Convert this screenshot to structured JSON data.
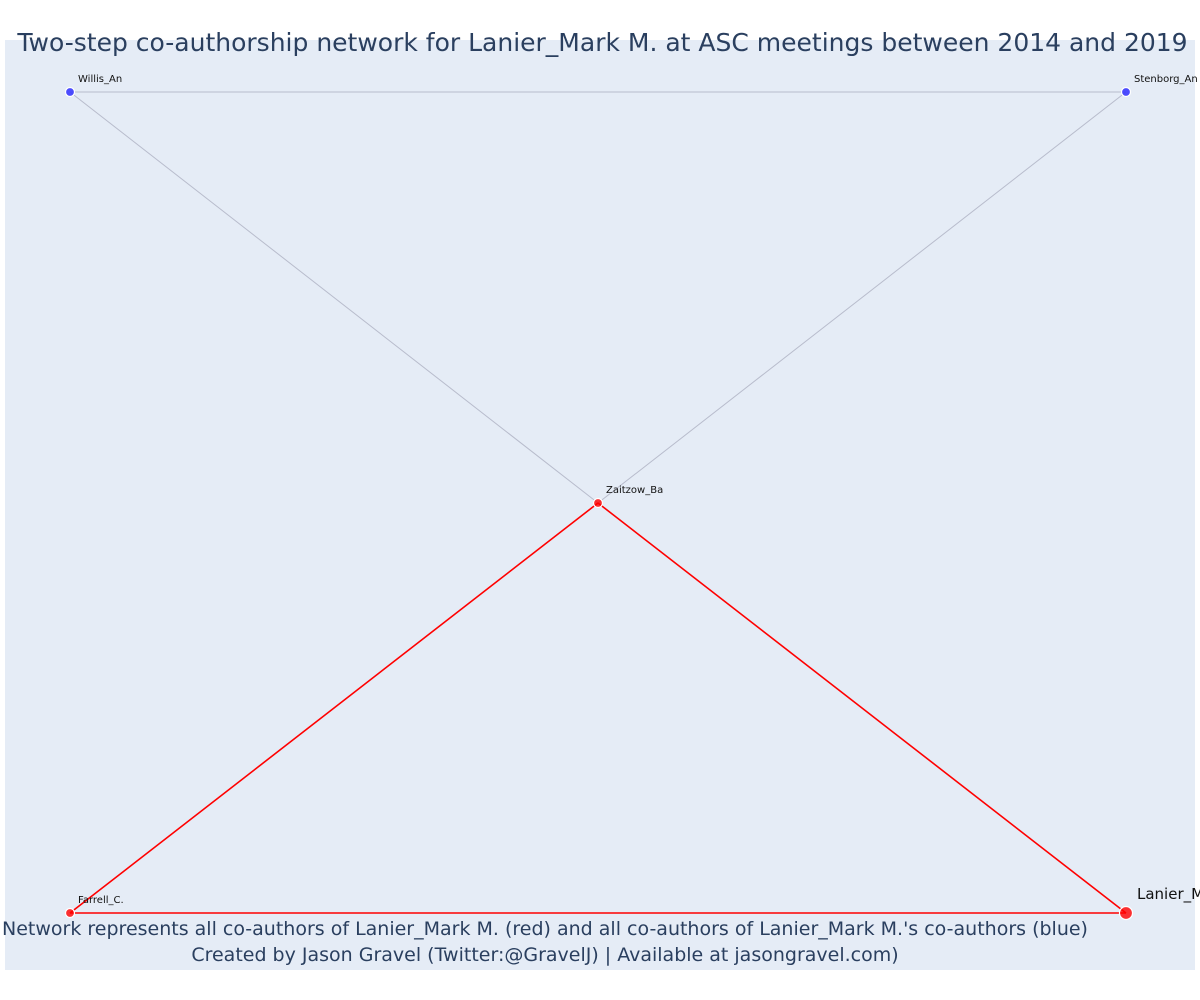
{
  "title": "Two-step co-authorship network for Lanier_Mark M. at ASC meetings between 2014 and 2019",
  "footer": {
    "line1": "Network represents all co-authors of Lanier_Mark M. (red) and all co-authors of Lanier_Mark M.'s co-authors (blue)",
    "line2": "Created by Jason Gravel (Twitter:@GravelJ) | Available at jasongravel.com)"
  },
  "colors": {
    "background": "#e5ecf6",
    "red": "#ff0000",
    "blue": "#3b3bff",
    "gray_edge": "#b8bccc",
    "text": "#2a3f5f"
  },
  "network": {
    "nodes": [
      {
        "id": "willis",
        "label": "Willis_An",
        "group": "blue"
      },
      {
        "id": "stenborg",
        "label": "Stenborg_An",
        "group": "blue"
      },
      {
        "id": "zaitzow",
        "label": "Zaitzow_Ba",
        "group": "red"
      },
      {
        "id": "farrell",
        "label": "Farrell_C.",
        "group": "red"
      },
      {
        "id": "lanier",
        "label": "Lanier_Mark M.",
        "group": "red",
        "focal": true
      }
    ],
    "edges": [
      {
        "source": "willis",
        "target": "stenborg",
        "type": "gray"
      },
      {
        "source": "willis",
        "target": "zaitzow",
        "type": "gray"
      },
      {
        "source": "stenborg",
        "target": "zaitzow",
        "type": "gray"
      },
      {
        "source": "zaitzow",
        "target": "farrell",
        "type": "red"
      },
      {
        "source": "zaitzow",
        "target": "lanier",
        "type": "red"
      },
      {
        "source": "farrell",
        "target": "lanier",
        "type": "red"
      }
    ]
  }
}
